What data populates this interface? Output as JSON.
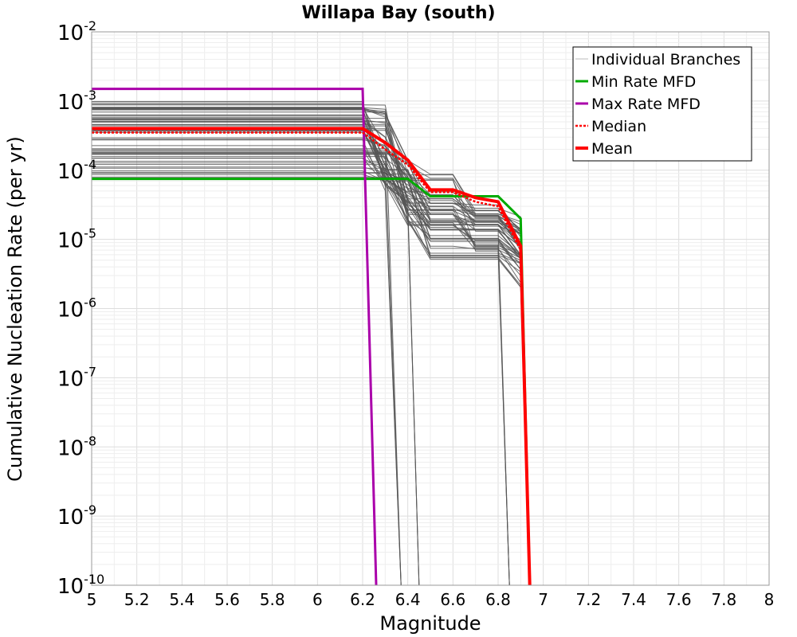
{
  "chart_data": {
    "type": "line",
    "title": "Willapa Bay (south)",
    "xlabel": "Magnitude",
    "ylabel": "Cumulative Nucleation Rate (per yr)",
    "xlim": [
      5,
      8
    ],
    "ylim": [
      1e-10,
      0.01
    ],
    "y_scale": "log",
    "grid": true,
    "legend_position": "top-right",
    "x_ticks": [
      "5",
      "5.2",
      "5.4",
      "5.6",
      "5.8",
      "6",
      "6.2",
      "6.4",
      "6.6",
      "6.8",
      "7",
      "7.2",
      "7.4",
      "7.6",
      "7.8",
      "8"
    ],
    "y_ticks": [
      {
        "base": "10",
        "exp": "-2"
      },
      {
        "base": "10",
        "exp": "-3"
      },
      {
        "base": "10",
        "exp": "-4"
      },
      {
        "base": "10",
        "exp": "-5"
      },
      {
        "base": "10",
        "exp": "-6"
      },
      {
        "base": "10",
        "exp": "-7"
      },
      {
        "base": "10",
        "exp": "-8"
      },
      {
        "base": "10",
        "exp": "-9"
      },
      {
        "base": "10",
        "exp": "-10"
      }
    ],
    "legend": [
      {
        "label": "Individual Branches",
        "color": "#bbbbbb",
        "style": "solid-thin"
      },
      {
        "label": "Min Rate MFD",
        "color": "#00aa00",
        "style": "solid"
      },
      {
        "label": "Max Rate MFD",
        "color": "#aa00aa",
        "style": "solid"
      },
      {
        "label": "Median",
        "color": "#ff0000",
        "style": "dotted"
      },
      {
        "label": "Mean",
        "color": "#ff0000",
        "style": "solid-thick"
      }
    ],
    "branch_color": "#555555",
    "branch_count_approx": 60,
    "series": [
      {
        "name": "Min Rate MFD",
        "color": "#00aa00",
        "x": [
          5.0,
          6.2,
          6.3,
          6.4,
          6.5,
          6.6,
          6.7,
          6.8,
          6.9,
          6.94
        ],
        "y": [
          7.5e-05,
          7.5e-05,
          7.5e-05,
          7.5e-05,
          4.2e-05,
          4.2e-05,
          4.2e-05,
          4.2e-05,
          2e-05,
          1e-10
        ]
      },
      {
        "name": "Max Rate MFD",
        "color": "#aa00aa",
        "x": [
          5.0,
          6.2,
          6.26
        ],
        "y": [
          0.0015,
          0.0015,
          1e-10
        ]
      },
      {
        "name": "Median",
        "color": "#ff0000",
        "x": [
          5.0,
          6.2,
          6.3,
          6.4,
          6.5,
          6.6,
          6.7,
          6.8,
          6.9,
          6.94
        ],
        "y": [
          0.00035,
          0.00035,
          0.0002,
          0.00012,
          4.8e-05,
          4.8e-05,
          3.5e-05,
          3e-05,
          7e-06,
          1e-10
        ]
      },
      {
        "name": "Mean",
        "color": "#ff0000",
        "x": [
          5.0,
          6.2,
          6.3,
          6.4,
          6.5,
          6.6,
          6.7,
          6.8,
          6.9,
          6.94
        ],
        "y": [
          0.0004,
          0.0004,
          0.00025,
          0.00014,
          5.2e-05,
          5.2e-05,
          4e-05,
          3.5e-05,
          8e-06,
          1e-10
        ]
      }
    ]
  }
}
